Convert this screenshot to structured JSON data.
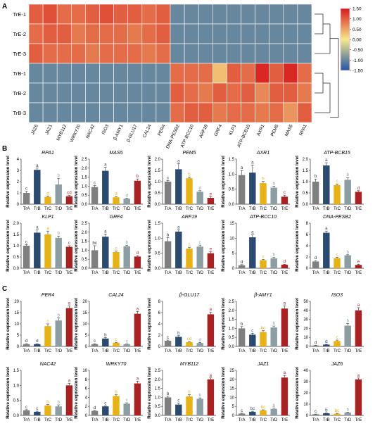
{
  "figure": {
    "panel_labels": [
      "A",
      "B",
      "C"
    ]
  },
  "heatmap": {
    "rows": [
      "TrE-1",
      "TrE-2",
      "TrE-3",
      "TrB-1",
      "TrB-2",
      "TrB-3"
    ],
    "cols": [
      "JAZ6",
      "JAZ1",
      "MYB112",
      "WRKY70",
      "NAC42",
      "ISO3",
      "β-AMY1",
      "β-GLU17",
      "CAL24",
      "PER4",
      "DNA-PESB2",
      "ATP-BCC10",
      "ARF19",
      "GRF4",
      "KLP1",
      "ATP-BCB15",
      "AXR1",
      "PEM5",
      "MAS5",
      "RPA1"
    ],
    "values": [
      [
        1.0,
        1.1,
        0.9,
        0.9,
        1.0,
        1.1,
        1.0,
        1.0,
        0.9,
        1.0,
        -1.0,
        -1.0,
        -1.0,
        -1.0,
        -1.0,
        -1.0,
        -1.0,
        -1.0,
        -1.0,
        -1.0
      ],
      [
        0.9,
        1.0,
        1.0,
        0.8,
        0.9,
        0.9,
        0.9,
        0.8,
        0.9,
        1.0,
        -1.0,
        -1.0,
        -1.0,
        -1.0,
        -1.0,
        -1.0,
        -1.0,
        -1.0,
        -1.0,
        -1.0
      ],
      [
        1.0,
        0.9,
        0.9,
        0.9,
        0.8,
        0.9,
        0.9,
        0.9,
        0.8,
        0.9,
        -1.0,
        -1.0,
        -1.0,
        -1.0,
        -1.0,
        -1.0,
        -1.0,
        -1.0,
        -1.0,
        -1.0
      ],
      [
        -1.0,
        -1.0,
        -1.0,
        -1.0,
        -1.0,
        -1.0,
        -1.0,
        -1.0,
        -1.0,
        -1.0,
        0.9,
        0.9,
        0.9,
        0.3,
        1.0,
        0.9,
        1.4,
        1.0,
        1.4,
        0.9
      ],
      [
        -1.0,
        -1.0,
        -1.0,
        -1.0,
        -1.0,
        -1.0,
        -1.0,
        -1.0,
        -1.0,
        -1.0,
        1.0,
        0.9,
        0.8,
        1.0,
        0.9,
        1.0,
        0.7,
        1.0,
        1.0,
        0.8
      ],
      [
        -1.0,
        -1.0,
        -1.0,
        -1.0,
        -1.0,
        -1.0,
        -1.0,
        -1.0,
        -1.0,
        -1.0,
        0.9,
        1.0,
        1.0,
        0.8,
        0.9,
        0.9,
        0.8,
        0.9,
        0.6,
        1.0
      ]
    ],
    "colorbar_ticks": [
      "1.50",
      "1.00",
      "0.50",
      "0.00",
      "-0.50",
      "-1.00",
      "-1.50"
    ],
    "colors": {
      "low": "#1f56a8",
      "mid": "#f7e88a",
      "high": "#d7191c"
    }
  },
  "common": {
    "ylabel": "Relative expression level",
    "categories": [
      "TrA",
      "TrB",
      "TrC",
      "TrD",
      "TrE"
    ],
    "bar_colors": [
      "#7f7f7f",
      "#2b4a6f",
      "#e6b217",
      "#8c9ea3",
      "#a82223"
    ],
    "letter_color": "#222222"
  },
  "chart_data": [
    {
      "type": "bar",
      "title": "RPA1",
      "categories": [
        "TrA",
        "TrB",
        "TrC",
        "TrD",
        "TrE"
      ],
      "values": [
        1.0,
        3.05,
        0.65,
        1.75,
        0.7
      ],
      "errors": [
        0.15,
        0.15,
        0.08,
        0.55,
        0.08
      ],
      "letters": [
        "c",
        "a",
        "d",
        "b",
        "cd"
      ],
      "ylim": [
        0,
        4
      ],
      "yticks": [
        "0",
        "1",
        "2",
        "3",
        "4"
      ]
    },
    {
      "type": "bar",
      "title": "MAS5",
      "categories": [
        "TrA",
        "TrB",
        "TrC",
        "TrD",
        "TrE"
      ],
      "values": [
        0.95,
        1.85,
        0.38,
        0.3,
        1.3
      ],
      "errors": [
        0.08,
        0.2,
        0.04,
        0.04,
        0.1
      ],
      "letters": [
        "c",
        "a",
        "d",
        "d",
        "b"
      ],
      "ylim": [
        0,
        2.5
      ],
      "yticks": [
        "0.0",
        "0.5",
        "1.0",
        "1.5",
        "2.0",
        "2.5"
      ]
    },
    {
      "type": "bar",
      "title": "PEM5",
      "categories": [
        "TrA",
        "TrB",
        "TrC",
        "TrD",
        "TrE"
      ],
      "values": [
        1.0,
        1.55,
        1.15,
        0.55,
        0.28
      ],
      "errors": [
        0.05,
        0.25,
        0.06,
        0.05,
        0.05
      ],
      "letters": [
        "c",
        "a",
        "b",
        "d",
        "e"
      ],
      "ylim": [
        0,
        2.0
      ],
      "yticks": [
        "0.0",
        "0.5",
        "1.0",
        "1.5",
        "2.0"
      ]
    },
    {
      "type": "bar",
      "title": "AXR1",
      "categories": [
        "TrA",
        "TrB",
        "TrC",
        "TrD",
        "TrE"
      ],
      "values": [
        0.97,
        1.05,
        0.7,
        0.55,
        0.25
      ],
      "errors": [
        0.15,
        0.25,
        0.06,
        0.05,
        0.05
      ],
      "letters": [
        "a",
        "a",
        "b",
        "b",
        "c"
      ],
      "ylim": [
        0,
        1.5
      ],
      "yticks": [
        "0.0",
        "0.5",
        "1.0",
        "1.5"
      ]
    },
    {
      "type": "bar",
      "title": "ATP-BCB15",
      "categories": [
        "TrA",
        "TrB",
        "TrC",
        "TrD",
        "TrE"
      ],
      "values": [
        1.0,
        1.72,
        0.85,
        1.08,
        0.55
      ],
      "errors": [
        0.12,
        0.12,
        0.05,
        0.1,
        0.05
      ],
      "letters": [
        "b",
        "a",
        "c",
        "b",
        "d"
      ],
      "ylim": [
        0,
        2.0
      ],
      "yticks": [
        "0.0",
        "0.5",
        "1.0",
        "1.5",
        "2.0"
      ]
    },
    {
      "type": "bar",
      "title": "KLP1",
      "categories": [
        "TrA",
        "TrB",
        "TrC",
        "TrD",
        "TrE"
      ],
      "values": [
        1.0,
        1.58,
        1.5,
        1.35,
        0.95
      ],
      "errors": [
        0.05,
        0.12,
        0.15,
        0.08,
        0.05
      ],
      "letters": [
        "c",
        "a",
        "a",
        "b",
        "c"
      ],
      "ylim": [
        0,
        2.0
      ],
      "yticks": [
        "0.0",
        "0.5",
        "1.0",
        "1.5",
        "2.0"
      ]
    },
    {
      "type": "bar",
      "title": "GRF4",
      "categories": [
        "TrA",
        "TrB",
        "TrC",
        "TrD",
        "TrE"
      ],
      "values": [
        1.0,
        1.75,
        0.9,
        1.22,
        0.65
      ],
      "errors": [
        0.25,
        0.15,
        0.05,
        0.06,
        0.05
      ],
      "letters": [
        "bc",
        "a",
        "c",
        "b",
        "d"
      ],
      "ylim": [
        0,
        2.5
      ],
      "yticks": [
        "0.0",
        "0.5",
        "1.0",
        "1.5",
        "2.0",
        "2.5"
      ]
    },
    {
      "type": "bar",
      "title": "ARF19",
      "categories": [
        "TrA",
        "TrB",
        "TrC",
        "TrD",
        "TrE"
      ],
      "values": [
        0.9,
        1.22,
        0.65,
        0.72,
        0.5
      ],
      "errors": [
        0.12,
        0.06,
        0.05,
        0.05,
        0.05
      ],
      "letters": [
        "b",
        "a",
        "c",
        "c",
        "e"
      ],
      "ylim": [
        0,
        1.5
      ],
      "yticks": [
        "0.0",
        "0.5",
        "1.0",
        "1.5"
      ]
    },
    {
      "type": "bar",
      "title": "ATP-BCC10",
      "categories": [
        "TrA",
        "TrB",
        "TrC",
        "TrD",
        "TrE"
      ],
      "values": [
        1.0,
        10.3,
        2.7,
        3.3,
        1.2
      ],
      "errors": [
        0.2,
        0.8,
        0.2,
        0.3,
        0.15
      ],
      "letters": [
        "d",
        "a",
        "c",
        "b",
        "d"
      ],
      "ylim": [
        0,
        15
      ],
      "yticks": [
        "0",
        "5",
        "10",
        "15"
      ]
    },
    {
      "type": "bar",
      "title": "DNA-PESB2",
      "categories": [
        "TrA",
        "TrB",
        "TrC",
        "TrD",
        "TrE"
      ],
      "values": [
        1.2,
        6.3,
        1.8,
        2.3,
        0.6
      ],
      "errors": [
        0.15,
        0.3,
        0.15,
        0.1,
        0.1
      ],
      "letters": [
        "d",
        "a",
        "c",
        "b",
        "e"
      ],
      "ylim": [
        0,
        8
      ],
      "yticks": [
        "0",
        "2",
        "4",
        "6",
        "8"
      ]
    },
    {
      "type": "bar",
      "title": "PER4",
      "categories": [
        "TrA",
        "TrB",
        "TrC",
        "TrD",
        "TrE"
      ],
      "values": [
        1.0,
        1.0,
        9.0,
        11.5,
        17.0
      ],
      "errors": [
        0.2,
        0.2,
        1.0,
        1.2,
        1.0
      ],
      "letters": [
        "d",
        "d",
        "c",
        "b",
        "a"
      ],
      "ylim": [
        0,
        20
      ],
      "yticks": [
        "0",
        "5",
        "10",
        "15",
        "20"
      ]
    },
    {
      "type": "bar",
      "title": "CAL24",
      "categories": [
        "TrA",
        "TrB",
        "TrC",
        "TrD",
        "TrE"
      ],
      "values": [
        1.0,
        3.5,
        1.6,
        1.0,
        14.5
      ],
      "errors": [
        0.2,
        0.4,
        0.2,
        0.1,
        1.0
      ],
      "letters": [
        "c",
        "b",
        "c",
        "c",
        "a"
      ],
      "ylim": [
        0,
        20
      ],
      "yticks": [
        "0",
        "5",
        "10",
        "15",
        "20"
      ]
    },
    {
      "type": "bar",
      "title": "β-GLU17",
      "categories": [
        "TrA",
        "TrB",
        "TrC",
        "TrD",
        "TrE"
      ],
      "values": [
        1.0,
        1.7,
        0.75,
        0.6,
        5.7
      ],
      "errors": [
        0.12,
        0.2,
        0.1,
        0.1,
        0.4
      ],
      "letters": [
        "c",
        "b",
        "cd",
        "d",
        "a"
      ],
      "ylim": [
        0,
        8
      ],
      "yticks": [
        "0",
        "2",
        "4",
        "6",
        "8"
      ]
    },
    {
      "type": "bar",
      "title": "β-AMY1",
      "categories": [
        "TrA",
        "TrB",
        "TrC",
        "TrD",
        "TrE"
      ],
      "values": [
        1.0,
        0.65,
        0.8,
        1.05,
        2.1
      ],
      "errors": [
        0.1,
        0.08,
        0.08,
        0.08,
        0.15
      ],
      "letters": [
        "b",
        "c",
        "bc",
        "b",
        "a"
      ],
      "ylim": [
        0,
        2.5
      ],
      "yticks": [
        "0.0",
        "0.5",
        "1.0",
        "1.5",
        "2.0",
        "2.5"
      ]
    },
    {
      "type": "bar",
      "title": "ISO3",
      "categories": [
        "TrA",
        "TrB",
        "TrC",
        "TrD",
        "TrE"
      ],
      "values": [
        1.0,
        2.0,
        6.0,
        23.0,
        40.0
      ],
      "errors": [
        0.3,
        0.3,
        1.0,
        2.5,
        3.0
      ],
      "letters": [
        "d",
        "d",
        "c",
        "b",
        "a"
      ],
      "ylim": [
        0,
        50
      ],
      "yticks": [
        "0",
        "10",
        "20",
        "30",
        "40",
        "50"
      ]
    },
    {
      "type": "bar",
      "title": "NAC42",
      "categories": [
        "TrA",
        "TrB",
        "TrC",
        "TrD",
        "TrE"
      ],
      "values": [
        0.17,
        0.12,
        0.33,
        0.3,
        1.0
      ],
      "errors": [
        0.02,
        0.02,
        0.03,
        0.05,
        0.07
      ],
      "letters": [
        "c",
        "c",
        "b",
        "b",
        "a"
      ],
      "ylim": [
        0,
        1.5
      ],
      "yticks": [
        "0.0",
        "0.5",
        "1.0",
        "1.5"
      ]
    },
    {
      "type": "bar",
      "title": "WRKY70",
      "categories": [
        "TrA",
        "TrB",
        "TrC",
        "TrD",
        "TrE"
      ],
      "values": [
        1.0,
        2.0,
        4.3,
        2.6,
        7.1
      ],
      "errors": [
        0.1,
        0.1,
        0.3,
        0.2,
        0.5
      ],
      "letters": [
        "d",
        "c",
        "b",
        "c",
        "a"
      ],
      "ylim": [
        0,
        10
      ],
      "yticks": [
        "0",
        "2",
        "4",
        "6",
        "8",
        "10"
      ]
    },
    {
      "type": "bar",
      "title": "MYB112",
      "categories": [
        "TrA",
        "TrB",
        "TrC",
        "TrD",
        "TrE"
      ],
      "values": [
        1.0,
        0.6,
        1.05,
        0.92,
        2.0
      ],
      "errors": [
        0.06,
        0.08,
        0.1,
        0.05,
        0.08
      ],
      "letters": [
        "b",
        "c",
        "b",
        "b",
        "a"
      ],
      "ylim": [
        0,
        2.5
      ],
      "yticks": [
        "0.0",
        "0.5",
        "1.0",
        "1.5",
        "2.0",
        "2.5"
      ]
    },
    {
      "type": "bar",
      "title": "JAZ1",
      "categories": [
        "TrA",
        "TrB",
        "TrC",
        "TrD",
        "TrE"
      ],
      "values": [
        1.0,
        2.0,
        2.8,
        3.6,
        21.0
      ],
      "errors": [
        0.2,
        0.3,
        0.3,
        0.4,
        1.2
      ],
      "letters": [
        "c",
        "bc",
        "bc",
        "b",
        "a"
      ],
      "ylim": [
        0,
        25
      ],
      "yticks": [
        "0",
        "5",
        "10",
        "15",
        "20",
        "25"
      ]
    },
    {
      "type": "bar",
      "title": "JAZ6",
      "categories": [
        "TrA",
        "TrB",
        "TrC",
        "TrD",
        "TrE"
      ],
      "values": [
        1.0,
        1.9,
        1.5,
        2.5,
        32.0
      ],
      "errors": [
        0.2,
        0.3,
        0.3,
        0.4,
        1.2
      ],
      "letters": [
        "c",
        "b",
        "bc",
        "b",
        "a"
      ],
      "ylim": [
        0,
        40
      ],
      "yticks": [
        "0",
        "10",
        "20",
        "30",
        "40"
      ]
    }
  ]
}
